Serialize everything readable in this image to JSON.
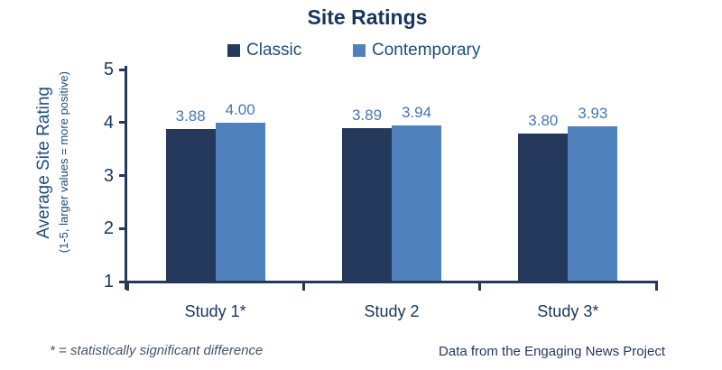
{
  "chart_data": {
    "type": "bar",
    "title": "Site Ratings",
    "categories": [
      "Study 1*",
      "Study 2",
      "Study 3*"
    ],
    "series": [
      {
        "name": "Classic",
        "color": "#24395B",
        "values": [
          3.88,
          3.89,
          3.8
        ],
        "value_labels": [
          "3.88",
          "3.89",
          "3.80"
        ]
      },
      {
        "name": "Contemporary",
        "color": "#4F81BD",
        "values": [
          4.0,
          3.94,
          3.93
        ],
        "value_labels": [
          "4.00",
          "3.94",
          "3.93"
        ]
      }
    ],
    "ylabel": "Average Site Rating",
    "ylabel_sub": "(1-5, larger values = more positive)",
    "ylim": [
      1,
      5
    ],
    "yticks": [
      1,
      2,
      3,
      4,
      5
    ],
    "grid": false,
    "legend_position": "top-center"
  },
  "footnotes": {
    "left": "* = statistically significant difference",
    "right": "Data from the Engaging News Project"
  },
  "colors": {
    "background": "#ffffff",
    "title_text": "#17375E",
    "axis": "#24395B",
    "tick_label_text": "#17375E",
    "data_label_text": "#4577B5",
    "legend_text": "#1F4E79",
    "footnote_left_text": "#44546A",
    "footnote_right_text": "#24395B"
  }
}
